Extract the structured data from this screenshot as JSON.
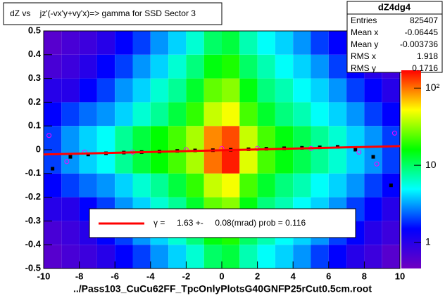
{
  "chart_data": {
    "type": "heatmap",
    "title": "dZ vs    jz'(-vx'y+vy'x)=> gamma for SSD Sector 3",
    "x_label": "../Pass103_CuCu62FF_TpcOnlyPlotsG40GNFP25rCut0.5cm.root",
    "xbins": [
      -10,
      -9,
      -8,
      -7,
      -6,
      -5,
      -4,
      -3,
      -2,
      -1,
      0,
      1,
      2,
      3,
      4,
      5,
      6,
      7,
      8,
      9,
      10
    ],
    "ybins": [
      -0.5,
      -0.4,
      -0.3,
      -0.2,
      -0.1,
      0,
      0.1,
      0.2,
      0.3,
      0.4,
      0.5
    ],
    "values": [
      [
        0.6,
        0.7,
        0.8,
        1,
        1.5,
        2,
        3,
        4,
        6,
        10,
        12,
        7,
        5,
        4,
        3,
        2,
        1.5,
        1,
        0.8,
        0.6
      ],
      [
        0.7,
        0.8,
        1,
        1.5,
        2,
        3,
        4,
        6,
        9,
        15,
        18,
        10,
        7,
        5,
        4,
        3,
        2,
        1.5,
        1,
        0.8
      ],
      [
        1,
        1,
        1.5,
        2,
        3,
        4,
        6,
        8,
        13,
        25,
        30,
        15,
        9,
        7,
        5,
        4,
        3,
        2,
        1.5,
        1
      ],
      [
        1.5,
        2,
        2.5,
        3,
        4,
        6,
        8,
        12,
        20,
        40,
        50,
        22,
        13,
        9,
        7,
        5,
        4,
        3,
        2,
        1.5
      ],
      [
        2,
        3,
        4,
        5,
        8,
        12,
        16,
        22,
        35,
        100,
        150,
        45,
        22,
        15,
        11,
        8,
        6,
        4,
        3,
        2
      ],
      [
        2,
        3,
        4,
        5,
        8,
        12,
        16,
        22,
        35,
        90,
        120,
        40,
        22,
        15,
        11,
        8,
        6,
        4,
        3,
        2
      ],
      [
        1.5,
        2,
        2.5,
        3,
        4,
        6,
        8,
        12,
        20,
        40,
        50,
        22,
        13,
        9,
        7,
        5,
        4,
        3,
        2,
        1.5
      ],
      [
        1,
        1,
        1.5,
        2,
        3,
        4,
        6,
        8,
        13,
        25,
        30,
        15,
        9,
        7,
        5,
        4,
        3,
        2,
        1.5,
        1
      ],
      [
        0.7,
        0.8,
        1,
        1.5,
        2,
        3,
        4,
        6,
        9,
        15,
        18,
        10,
        7,
        5,
        4,
        3,
        2,
        1.5,
        1,
        0.8
      ],
      [
        0.6,
        0.7,
        0.8,
        1,
        1.5,
        2,
        3,
        4,
        6,
        10,
        12,
        7,
        5,
        4,
        3,
        2,
        1.5,
        1,
        0.8,
        0.6
      ]
    ],
    "palette": [
      "#7000c0",
      "#0000ff",
      "#00ffff",
      "#00ff00",
      "#ffff00",
      "#ff0000"
    ],
    "xlim": [
      -10,
      10
    ],
    "ylim": [
      -0.5,
      0.5
    ],
    "xticks": [
      -10,
      -8,
      -6,
      -4,
      -2,
      0,
      2,
      4,
      6,
      8,
      10
    ],
    "yticks": [
      -0.5,
      -0.4,
      -0.3,
      -0.2,
      -0.1,
      0,
      0.1,
      0.2,
      0.3,
      0.4,
      0.5
    ],
    "zlim": [
      0.46,
      170
    ],
    "zlog": true,
    "zticks": [
      1,
      10,
      {
        "value": 100,
        "label": "10²"
      }
    ],
    "profiles": [
      {
        "color": "#000000",
        "x": [
          -9.5,
          -8.5,
          -7.5,
          -6.5,
          -5.5,
          -4.5,
          -3.5,
          -2.5,
          -1.5,
          -0.5,
          0.5,
          1.5,
          2.5,
          3.5,
          4.5,
          5.5,
          6.5,
          7.5,
          8.5,
          9.5
        ],
        "values": [
          -0.08,
          -0.03,
          -0.02,
          -0.015,
          -0.012,
          -0.01,
          -0.008,
          -0.005,
          -0.003,
          -0.002,
          0,
          0.002,
          0.004,
          0.006,
          0.008,
          0.01,
          0.012,
          0,
          -0.03,
          -0.15
        ]
      },
      {
        "color": "#ff00ff",
        "x": [
          -9.7,
          -8.7,
          -7.7,
          -5,
          -2,
          0,
          2,
          5,
          7.7,
          8.7,
          9.7
        ],
        "values": [
          0.06,
          -0.05,
          -0.01,
          -0.01,
          0,
          0.005,
          0.005,
          0.005,
          -0.01,
          -0.06,
          0.07
        ]
      }
    ],
    "fit": {
      "color": "#ff0000",
      "x": [
        -10,
        10
      ],
      "values": [
        -0.02,
        0.015
      ]
    },
    "legend": "γ =     1.63 +-     0.08(mrad) prob = 0.116",
    "stats": {
      "title": "dZ4dg4",
      "rows": [
        {
          "label": "Entries",
          "value": 825407
        },
        {
          "label": "Mean x",
          "value": -0.06445
        },
        {
          "label": "Mean y",
          "value": -0.003736
        },
        {
          "label": "RMS x",
          "value": 1.918
        },
        {
          "label": "RMS y",
          "value": 0.1716
        }
      ]
    }
  }
}
